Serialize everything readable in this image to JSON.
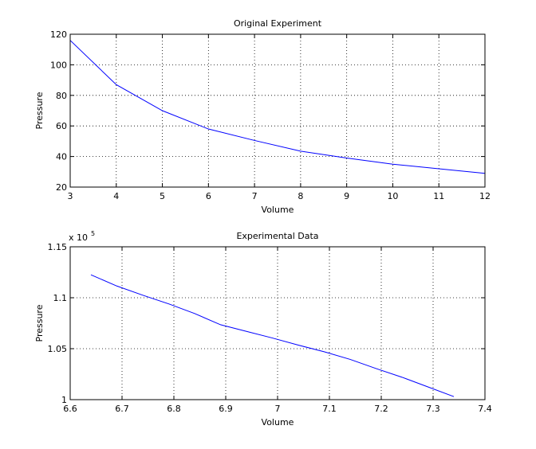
{
  "chart_data": [
    {
      "type": "line",
      "title": "Original Experiment",
      "xlabel": "Volume",
      "ylabel": "Pressure",
      "xlim": [
        3,
        12
      ],
      "ylim": [
        20,
        120
      ],
      "grid": true,
      "x_ticks": [
        3,
        4,
        5,
        6,
        7,
        8,
        9,
        10,
        11,
        12
      ],
      "y_ticks": [
        20,
        40,
        60,
        80,
        100,
        120
      ],
      "x_tick_labels": [
        "3",
        "4",
        "5",
        "6",
        "7",
        "8",
        "9",
        "10",
        "11",
        "12"
      ],
      "y_tick_labels": [
        "20",
        "40",
        "60",
        "80",
        "100",
        "120"
      ],
      "line_color": "#0000ff",
      "series": [
        {
          "x": [
            3,
            4,
            5,
            6,
            7,
            8,
            9,
            10,
            11,
            12
          ],
          "y": [
            116,
            87,
            70,
            58,
            50.5,
            43.5,
            39,
            35,
            32,
            29
          ]
        }
      ]
    },
    {
      "type": "line",
      "title": "Experimental Data",
      "xlabel": "Volume",
      "ylabel": "Pressure",
      "exponent_label": "x 10",
      "exponent_power": "5",
      "xlim": [
        6.6,
        7.4
      ],
      "ylim": [
        1.0,
        1.15
      ],
      "grid": true,
      "x_ticks": [
        6.6,
        6.7,
        6.8,
        6.9,
        7.0,
        7.1,
        7.2,
        7.3,
        7.4
      ],
      "y_ticks": [
        1.0,
        1.05,
        1.1,
        1.15
      ],
      "x_tick_labels": [
        "6.6",
        "6.7",
        "6.8",
        "6.9",
        "7",
        "7.1",
        "7.2",
        "7.3",
        "7.4"
      ],
      "y_tick_labels": [
        "1",
        "1.05",
        "1.1",
        "1.15"
      ],
      "line_color": "#0000ff",
      "series": [
        {
          "x": [
            6.64,
            6.69,
            6.74,
            6.79,
            6.84,
            6.89,
            6.94,
            6.99,
            7.04,
            7.09,
            7.14,
            7.19,
            7.24,
            7.29,
            7.34
          ],
          "y": [
            1.1225,
            1.1115,
            1.1025,
            1.094,
            1.0845,
            1.0735,
            1.067,
            1.0605,
            1.0535,
            1.047,
            1.0395,
            1.0305,
            1.022,
            1.0125,
            1.003
          ]
        }
      ]
    }
  ]
}
